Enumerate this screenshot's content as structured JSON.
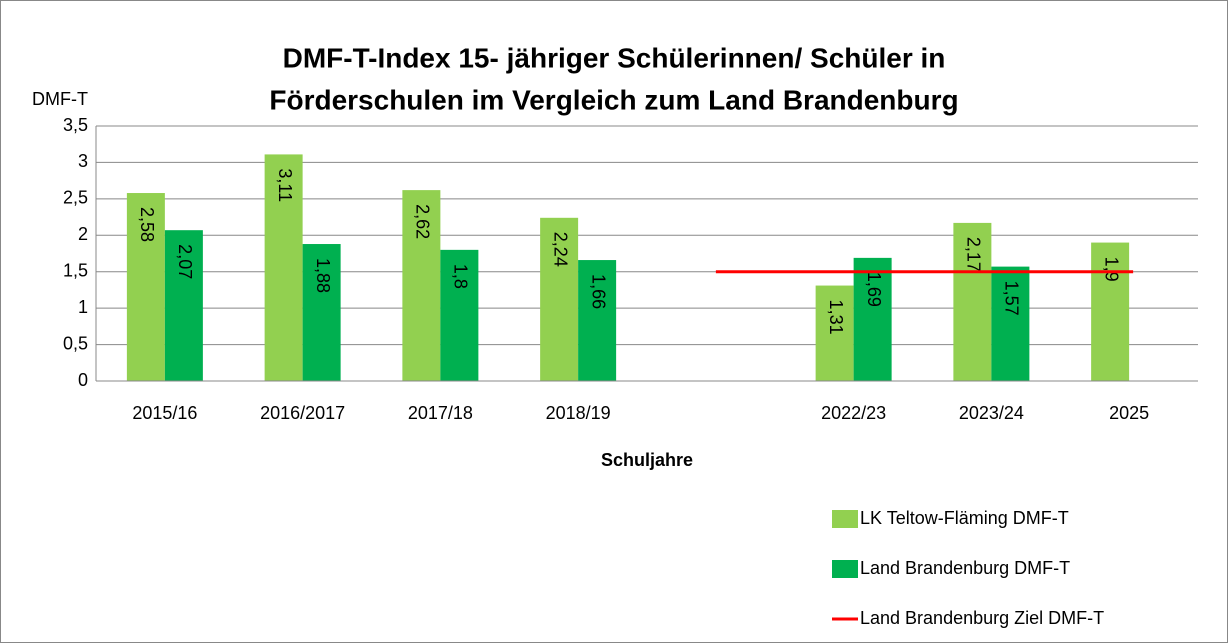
{
  "chart_data": {
    "type": "bar",
    "title": [
      "DMF-T-Index 15- jähriger Schülerinnen/ Schüler in",
      "Förderschulen im Vergleich zum Land Brandenburg"
    ],
    "y_label": "DMF-T",
    "x_label": "Schuljahre",
    "categories": [
      "2015/16",
      "2016/2017",
      "2017/18",
      "2018/19",
      null,
      "2022/23",
      "2023/24",
      "2025"
    ],
    "ylim": [
      0,
      3.5
    ],
    "yticks": [
      0,
      {
        "value": 0.5,
        "label": "0,5"
      },
      1,
      {
        "value": 1.5,
        "label": "1,5"
      },
      2,
      {
        "value": 2.5,
        "label": "2,5"
      },
      3,
      {
        "value": 3.5,
        "label": "3,5"
      }
    ],
    "grid": true,
    "legend": "bottom-right",
    "series": [
      {
        "name": "LK Teltow-Fläming DMF-T",
        "type": "bar",
        "color": "#92d050",
        "values": [
          2.58,
          3.11,
          2.62,
          2.24,
          null,
          1.31,
          2.17,
          1.9
        ],
        "value_labels": [
          "2,58",
          "3,11",
          "2,62",
          "2,24",
          null,
          "1,31",
          "2,17",
          "1,9"
        ]
      },
      {
        "name": "Land Brandenburg DMF-T",
        "type": "bar",
        "color": "#00b050",
        "values": [
          2.07,
          1.88,
          1.8,
          1.66,
          null,
          1.69,
          1.57,
          null
        ],
        "value_labels": [
          "2,07",
          "1,88",
          "1,8",
          "1,66",
          null,
          "1,69",
          "1,57",
          null
        ]
      },
      {
        "name": "Land Brandenburg Ziel DMF-T",
        "type": "line",
        "color": "#ff0000",
        "values": [
          null,
          null,
          null,
          null,
          1.5,
          1.5,
          1.5,
          1.5
        ]
      }
    ]
  }
}
